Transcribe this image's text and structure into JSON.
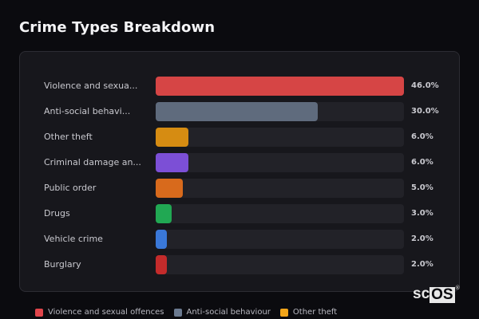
{
  "title": "Crime Types Breakdown",
  "chart_data": {
    "type": "bar",
    "orientation": "horizontal",
    "title": "Crime Types Breakdown",
    "categories": [
      "Violence and sexual offences",
      "Anti-social behaviour",
      "Other theft",
      "Criminal damage and arson",
      "Public order",
      "Drugs",
      "Vehicle crime",
      "Burglary"
    ],
    "display_labels": [
      "Violence and sexua...",
      "Anti-social behavi...",
      "Other theft",
      "Criminal damage an...",
      "Public order",
      "Drugs",
      "Vehicle crime",
      "Burglary"
    ],
    "values": [
      46.0,
      30.0,
      6.0,
      6.0,
      5.0,
      3.0,
      2.0,
      2.0
    ],
    "value_labels": [
      "46.0%",
      "30.0%",
      "6.0%",
      "6.0%",
      "5.0%",
      "3.0%",
      "2.0%",
      "2.0%"
    ],
    "colors": [
      "#d64545",
      "#5f6b7d",
      "#d68c12",
      "#7c4fd6",
      "#d86a1c",
      "#21a853",
      "#3a78d8",
      "#c42b2b"
    ],
    "unit": "%",
    "xlim": [
      0,
      46
    ],
    "grid": false,
    "legend_position": "bottom",
    "legend": [
      "Violence and sexual offences",
      "Anti-social behaviour",
      "Other theft"
    ]
  },
  "legend": [
    {
      "label": "Violence and sexual offences",
      "color": "#e0454b"
    },
    {
      "label": "Anti-social behaviour",
      "color": "#6b7a90"
    },
    {
      "label": "Other theft",
      "color": "#f2a51a"
    }
  ],
  "logo": {
    "prefix": "sc",
    "boxed": "OS",
    "mark": "®"
  }
}
